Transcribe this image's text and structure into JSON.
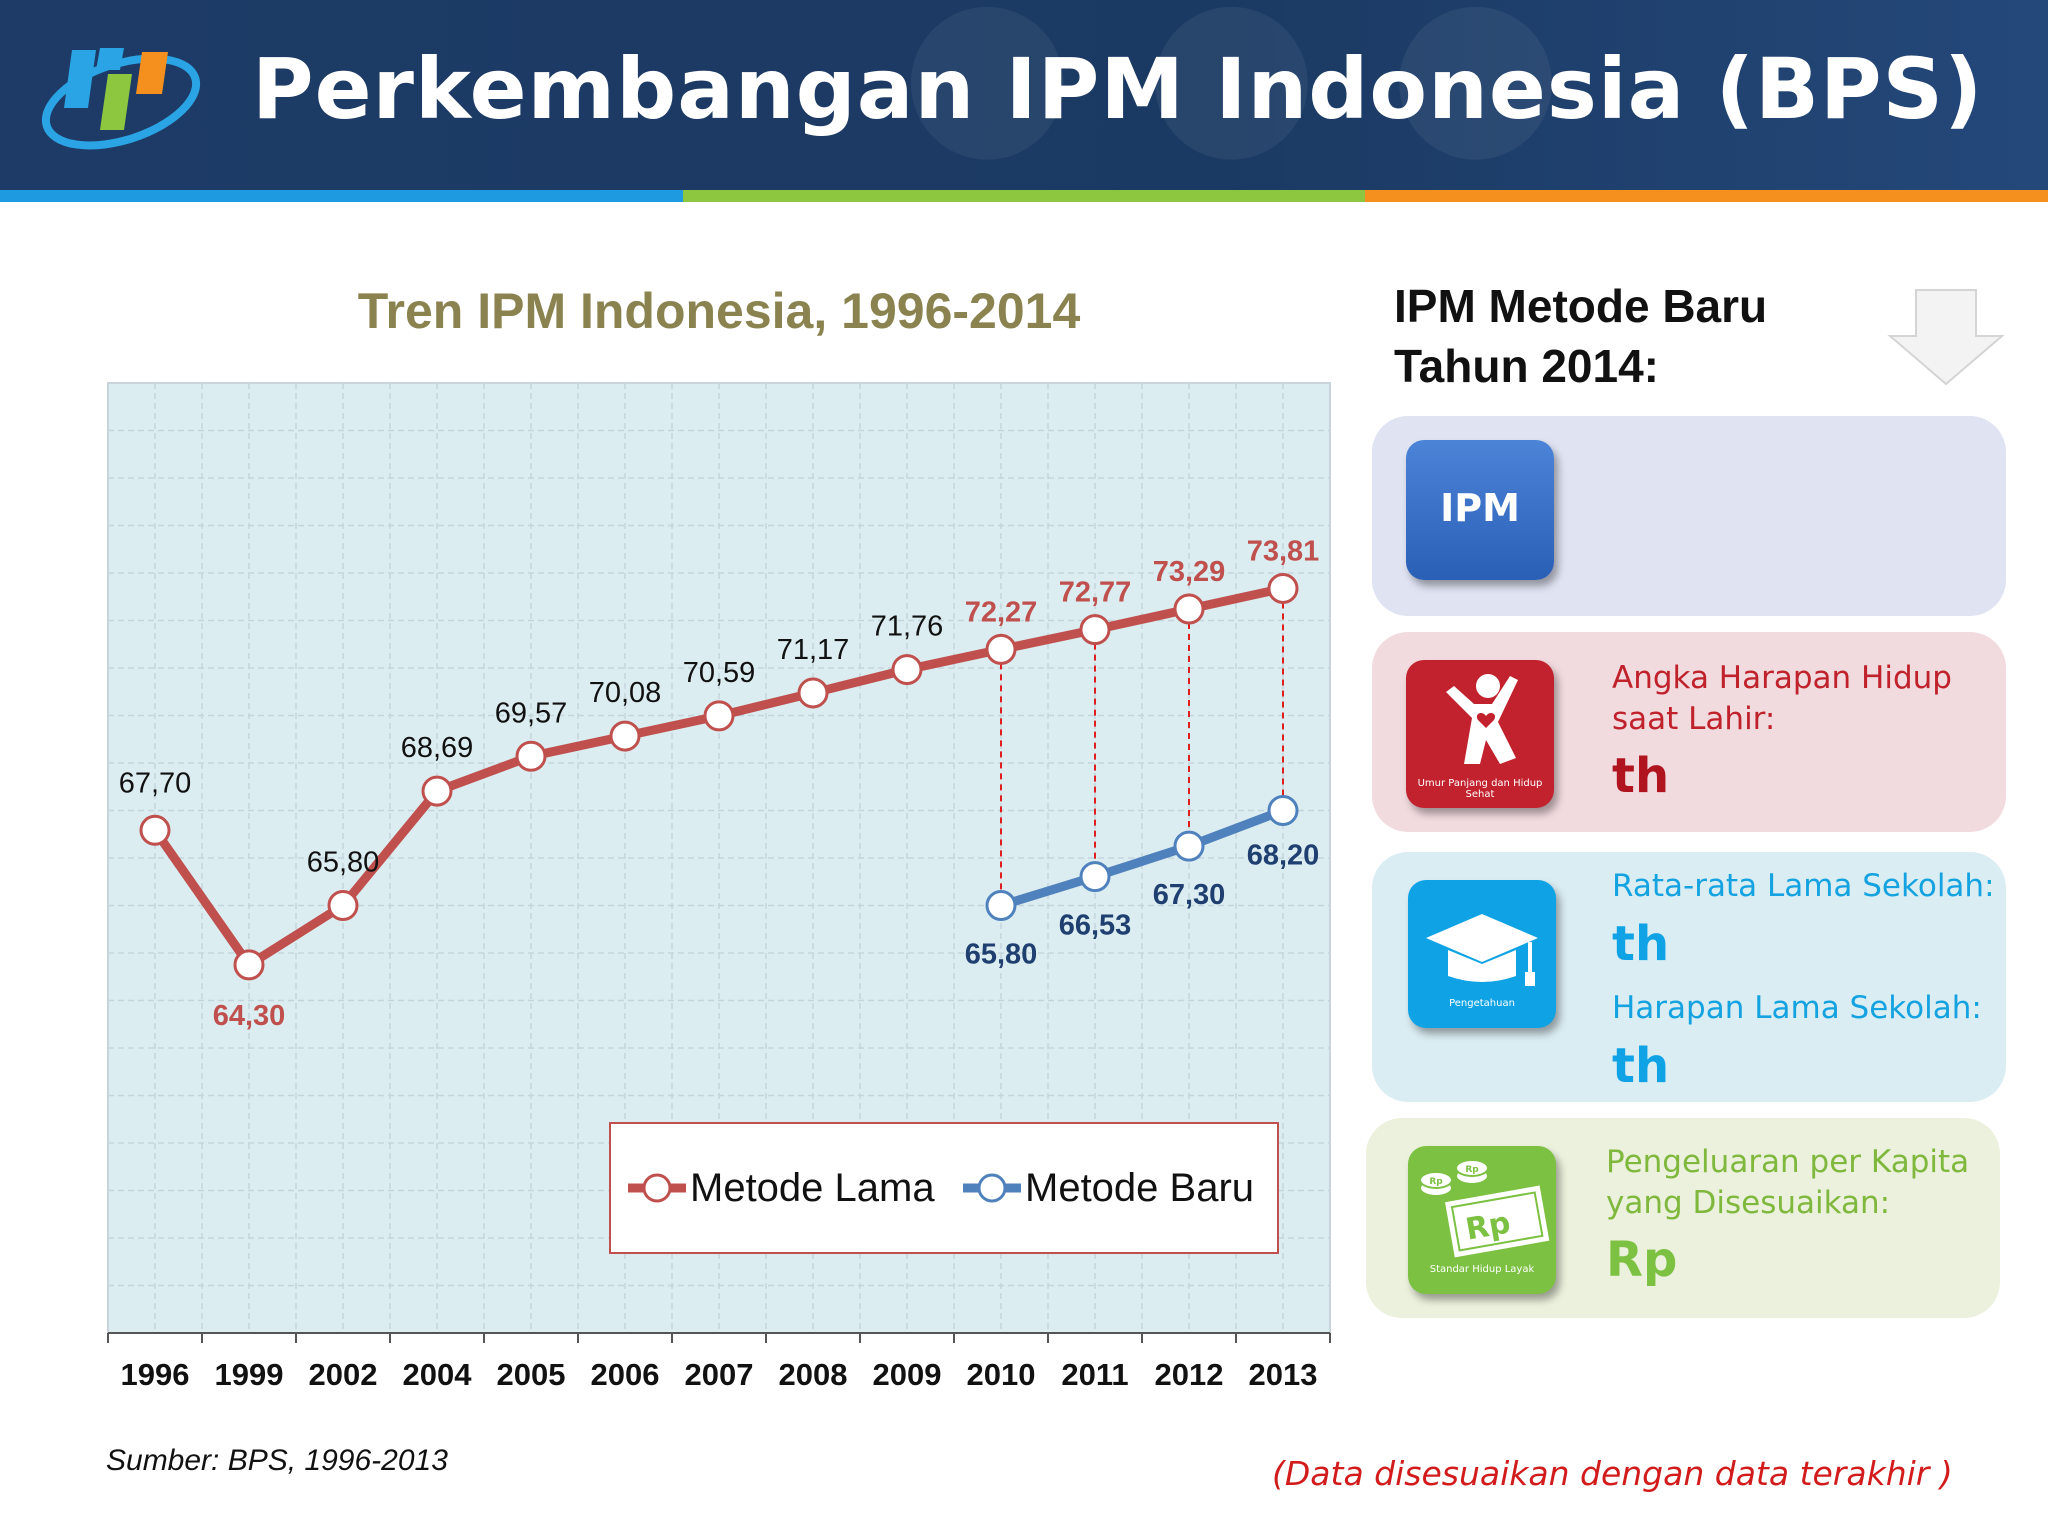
{
  "header": {
    "title": "Perkembangan IPM Indonesia (BPS)"
  },
  "colors": {
    "banner": "#1d3b66",
    "stripe_blue": "#1e9be0",
    "stripe_green": "#8dc63f",
    "stripe_orange": "#f5901e",
    "metode_lama": "#c0504d",
    "metode_baru": "#4f81bd"
  },
  "chart_data": {
    "type": "line",
    "title": "Tren IPM Indonesia, 1996-2014",
    "categories": [
      "1996",
      "1999",
      "2002",
      "2004",
      "2005",
      "2006",
      "2007",
      "2008",
      "2009",
      "2010",
      "2011",
      "2012",
      "2013"
    ],
    "series": [
      {
        "name": "Metode Lama",
        "values": [
          67.7,
          64.3,
          65.8,
          68.69,
          69.57,
          70.08,
          70.59,
          71.17,
          71.76,
          72.27,
          72.77,
          73.29,
          73.81
        ],
        "labels": [
          "67,70",
          "64,30",
          "65,80",
          "68,69",
          "69,57",
          "70,08",
          "70,59",
          "71,17",
          "71,76",
          "72,27",
          "72,77",
          "73,29",
          "73,81"
        ],
        "color": "#c0504d"
      },
      {
        "name": "Metode Baru",
        "values": [
          null,
          null,
          null,
          null,
          null,
          null,
          null,
          null,
          null,
          65.8,
          66.53,
          67.3,
          68.2
        ],
        "labels": [
          null,
          null,
          null,
          null,
          null,
          null,
          null,
          null,
          null,
          "65,80",
          "66,53",
          "67,30",
          "68,20"
        ],
        "color": "#4f81bd"
      }
    ],
    "ylim": [
      55,
      79
    ],
    "grid": true,
    "legend": "bottom-right"
  },
  "source_text": "Sumber: BPS, 1996-2013",
  "note_text": "(Data disesuaikan dengan data terakhir )",
  "panel": {
    "title_line1": "IPM Metode Baru",
    "title_line2": "Tahun 2014:",
    "ipm_label": "IPM",
    "health": {
      "icon_caption": "Umur Panjang dan Hidup Sehat",
      "label_line1": "Angka Harapan Hidup",
      "label_line2": "saat Lahir:",
      "unit": "th"
    },
    "education": {
      "icon_caption": "Pengetahuan",
      "label1": "Rata-rata Lama Sekolah:",
      "unit1": "th",
      "label2": "Harapan Lama Sekolah:",
      "unit2": "th"
    },
    "expenditure": {
      "icon_caption": "Standar Hidup Layak",
      "icon_text": "Rp",
      "coin_text": "Rp",
      "label_line1": "Pengeluaran per Kapita",
      "label_line2": "yang Disesuaikan:",
      "unit": "Rp"
    }
  }
}
